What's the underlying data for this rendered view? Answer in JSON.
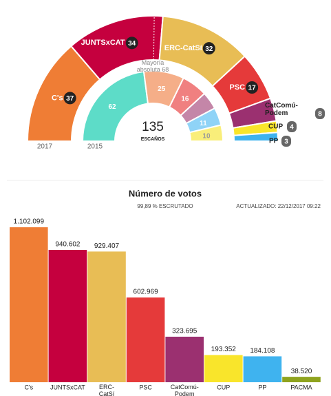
{
  "chart_data": [
    {
      "type": "semi-donut",
      "rings": [
        {
          "name": "2017",
          "categories": [
            "C's",
            "JUNTSxCAT",
            "ERC-CatSí",
            "PSC",
            "CatComú-Podem",
            "CUP",
            "PP"
          ],
          "values": [
            37,
            34,
            32,
            17,
            8,
            4,
            3
          ],
          "colors": [
            "#ef7d35",
            "#c5003e",
            "#e8bd55",
            "#e53a3a",
            "#9b3070",
            "#f9e52b",
            "#3fb3ef"
          ]
        },
        {
          "name": "2015",
          "values": [
            62,
            25,
            16,
            11,
            11,
            10
          ],
          "value_labels": [
            "62",
            "25",
            "16",
            null,
            "11",
            "10"
          ],
          "colors": [
            "#5ddcc8",
            "#f5ae88",
            "#f08080",
            "#c486a8",
            "#8fd3f7",
            "#f9ee7a"
          ]
        }
      ],
      "total": 135,
      "total_label": "ESCAÑOS",
      "majority": 68,
      "annotation": "Mayoría absoluta 68"
    },
    {
      "type": "bar",
      "title": "Número de votos",
      "subtitle": "99,89 % ESCRUTADO",
      "note": "ACTUALIZADO: 22/12/2017 09:22",
      "categories": [
        "C's",
        "JUNTSxCAT",
        "ERC-CatSí",
        "PSC",
        "CatComú-Podem",
        "CUP",
        "PP",
        "PACMA"
      ],
      "values": [
        1102099,
        940602,
        929407,
        602969,
        323695,
        193352,
        184108,
        38520
      ],
      "value_labels": [
        "1.102.099",
        "940.602",
        "929.407",
        "602.969",
        "323.695",
        "193.352",
        "184.108",
        "38.520"
      ],
      "colors": [
        "#ef7d35",
        "#c5003e",
        "#e8bd55",
        "#e53a3a",
        "#9b3070",
        "#f9e52b",
        "#3fb3ef",
        "#8fa31e"
      ]
    }
  ]
}
